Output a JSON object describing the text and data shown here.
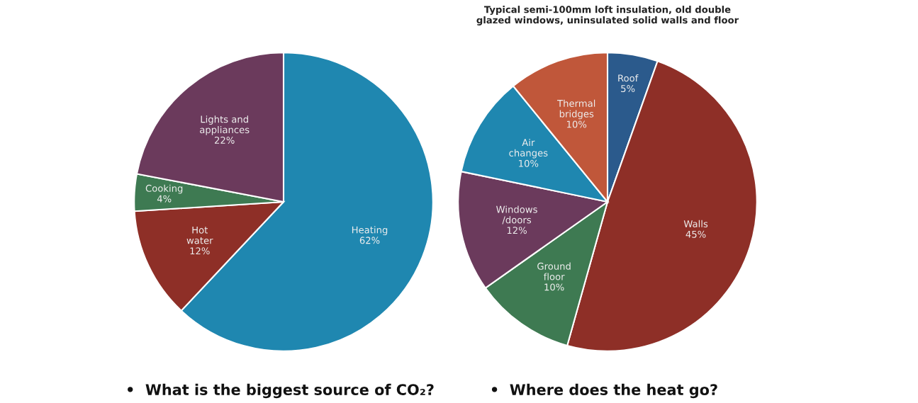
{
  "chart_data": [
    {
      "type": "pie",
      "categories": [
        "Heating",
        "Hot\nwater",
        "Cooking",
        "Lights and\nappliances"
      ],
      "values": [
        62,
        12,
        4,
        22
      ],
      "value_labels": [
        "62%",
        "12%",
        "4%",
        "22%"
      ],
      "colors": [
        "#1f87b0",
        "#8e2f27",
        "#3e7a52",
        "#6b3a5c"
      ],
      "annotations": [
        "•  What is the biggest source of CO₂?"
      ]
    },
    {
      "type": "pie",
      "title": "Typical semi-100mm loft insulation, old double\nglazed windows, uninsulated solid walls and floor",
      "categories": [
        "Roof",
        "Walls",
        "Ground\nfloor",
        "Windows\n/doors",
        "Air\nchanges",
        "Thermal\nbridges"
      ],
      "values": [
        5,
        45,
        10,
        12,
        10,
        10
      ],
      "value_labels": [
        "5%",
        "45%",
        "10%",
        "12%",
        "10%",
        "10%"
      ],
      "colors": [
        "#2b5a8c",
        "#8e2f27",
        "#3e7a52",
        "#6b3a5c",
        "#1f87b0",
        "#c0573a"
      ],
      "annotations": [
        "•  Where does the heat go?"
      ]
    }
  ]
}
